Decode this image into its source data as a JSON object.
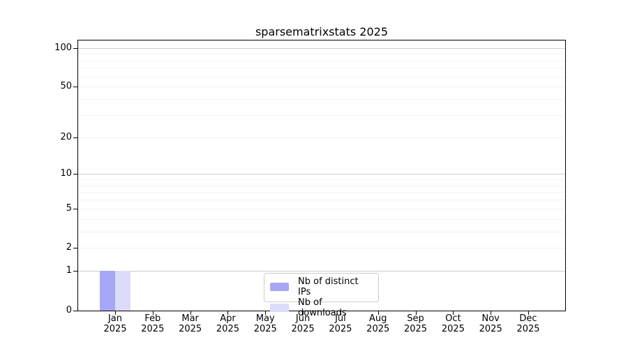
{
  "chart_data": {
    "type": "bar",
    "title": "sparsematrixstats 2025",
    "x_tick_labels": [
      {
        "month": "Jan",
        "year": "2025"
      },
      {
        "month": "Feb",
        "year": "2025"
      },
      {
        "month": "Mar",
        "year": "2025"
      },
      {
        "month": "Apr",
        "year": "2025"
      },
      {
        "month": "May",
        "year": "2025"
      },
      {
        "month": "Jun",
        "year": "2025"
      },
      {
        "month": "Jul",
        "year": "2025"
      },
      {
        "month": "Aug",
        "year": "2025"
      },
      {
        "month": "Sep",
        "year": "2025"
      },
      {
        "month": "Oct",
        "year": "2025"
      },
      {
        "month": "Nov",
        "year": "2025"
      },
      {
        "month": "Dec",
        "year": "2025"
      }
    ],
    "series": [
      {
        "name": "Nb of distinct IPs",
        "color": "#a6a8f5",
        "values": [
          1,
          0,
          0,
          0,
          0,
          0,
          0,
          0,
          0,
          0,
          0,
          0
        ]
      },
      {
        "name": "Nb of downloads",
        "color": "#dbdcfa",
        "values": [
          1,
          0,
          0,
          0,
          0,
          0,
          0,
          0,
          0,
          0,
          0,
          0
        ]
      }
    ],
    "y_axis": {
      "scale": "log1p",
      "range": [
        0,
        114
      ],
      "tick_values": [
        100,
        50,
        20,
        10,
        5,
        2,
        1,
        0
      ],
      "major_gridlines": [
        1,
        10,
        100
      ],
      "minor_gridlines": [
        2,
        3,
        4,
        5,
        6,
        7,
        8,
        9,
        20,
        30,
        40,
        50,
        60,
        70,
        80,
        90
      ]
    },
    "legend_position": "bottom-center",
    "colors": {
      "major_grid": "#cccccc",
      "minor_grid": "#f2f2f2",
      "axis": "#000000",
      "legend_border": "#cccccc"
    }
  }
}
